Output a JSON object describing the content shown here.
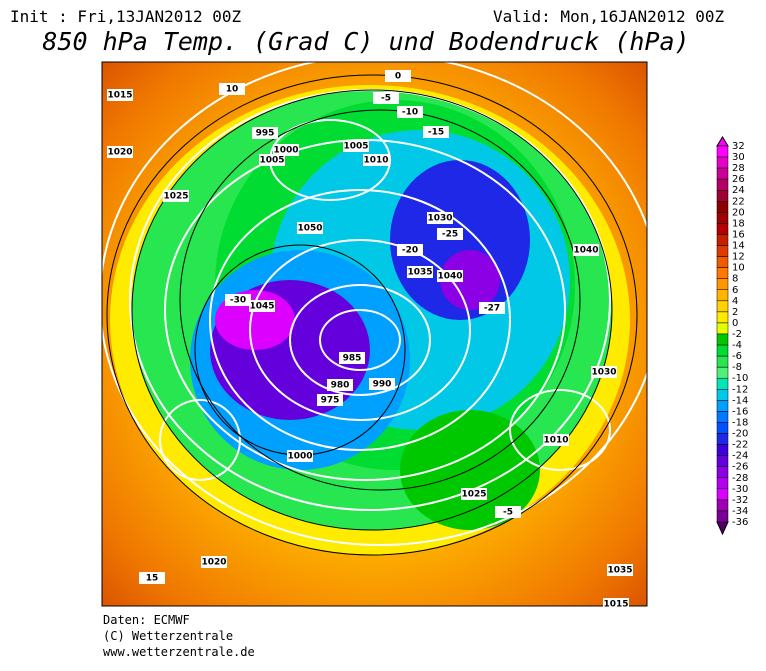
{
  "header": {
    "init": "Init : Fri,13JAN2012 00Z",
    "valid": "Valid: Mon,16JAN2012 00Z",
    "title": "850 hPa Temp. (Grad C) und Bodendruck (hPa)"
  },
  "map": {
    "labels": [
      "1015",
      "10",
      "1020",
      "1025",
      "995",
      "1000",
      "1005",
      "1010",
      "0",
      "-5",
      "-10",
      "-15",
      "1030",
      "1035",
      "1040",
      "1045",
      "1050",
      "-20",
      "-25",
      "-27",
      "975",
      "980",
      "990",
      "985",
      "1025",
      "15",
      "-5",
      "1020",
      "1030",
      "1015",
      "1010",
      "1005",
      "1000",
      "-30",
      "1035",
      "1040"
    ]
  },
  "colorbar": {
    "labels": [
      32,
      30,
      28,
      26,
      24,
      22,
      20,
      18,
      16,
      14,
      12,
      10,
      8,
      6,
      4,
      2,
      0,
      -2,
      -4,
      -6,
      -8,
      -10,
      -12,
      -14,
      -16,
      -18,
      -20,
      -22,
      -24,
      -26,
      -28,
      -30,
      -32,
      -34,
      -36
    ],
    "colors": [
      "#ff00ff",
      "#e600c8",
      "#cc0096",
      "#b40064",
      "#a00032",
      "#8c0000",
      "#a00000",
      "#b40000",
      "#c81e00",
      "#dc3c00",
      "#f05a00",
      "#ff7800",
      "#ff9600",
      "#ffb400",
      "#ffd200",
      "#ffeb00",
      "#e6ff00",
      "#00c800",
      "#00dc32",
      "#28e650",
      "#50f078",
      "#00e6b4",
      "#00c8e6",
      "#00a0ff",
      "#0078ff",
      "#0050ff",
      "#1e28e6",
      "#3c00dc",
      "#6400dc",
      "#8c00e6",
      "#b400f0",
      "#dc00ff",
      "#a000b4",
      "#780096",
      "#500064"
    ]
  },
  "footer": {
    "source": "Daten: ECMWF",
    "copyright": "(C) Wetterzentrale",
    "url": "www.wetterzentrale.de"
  }
}
